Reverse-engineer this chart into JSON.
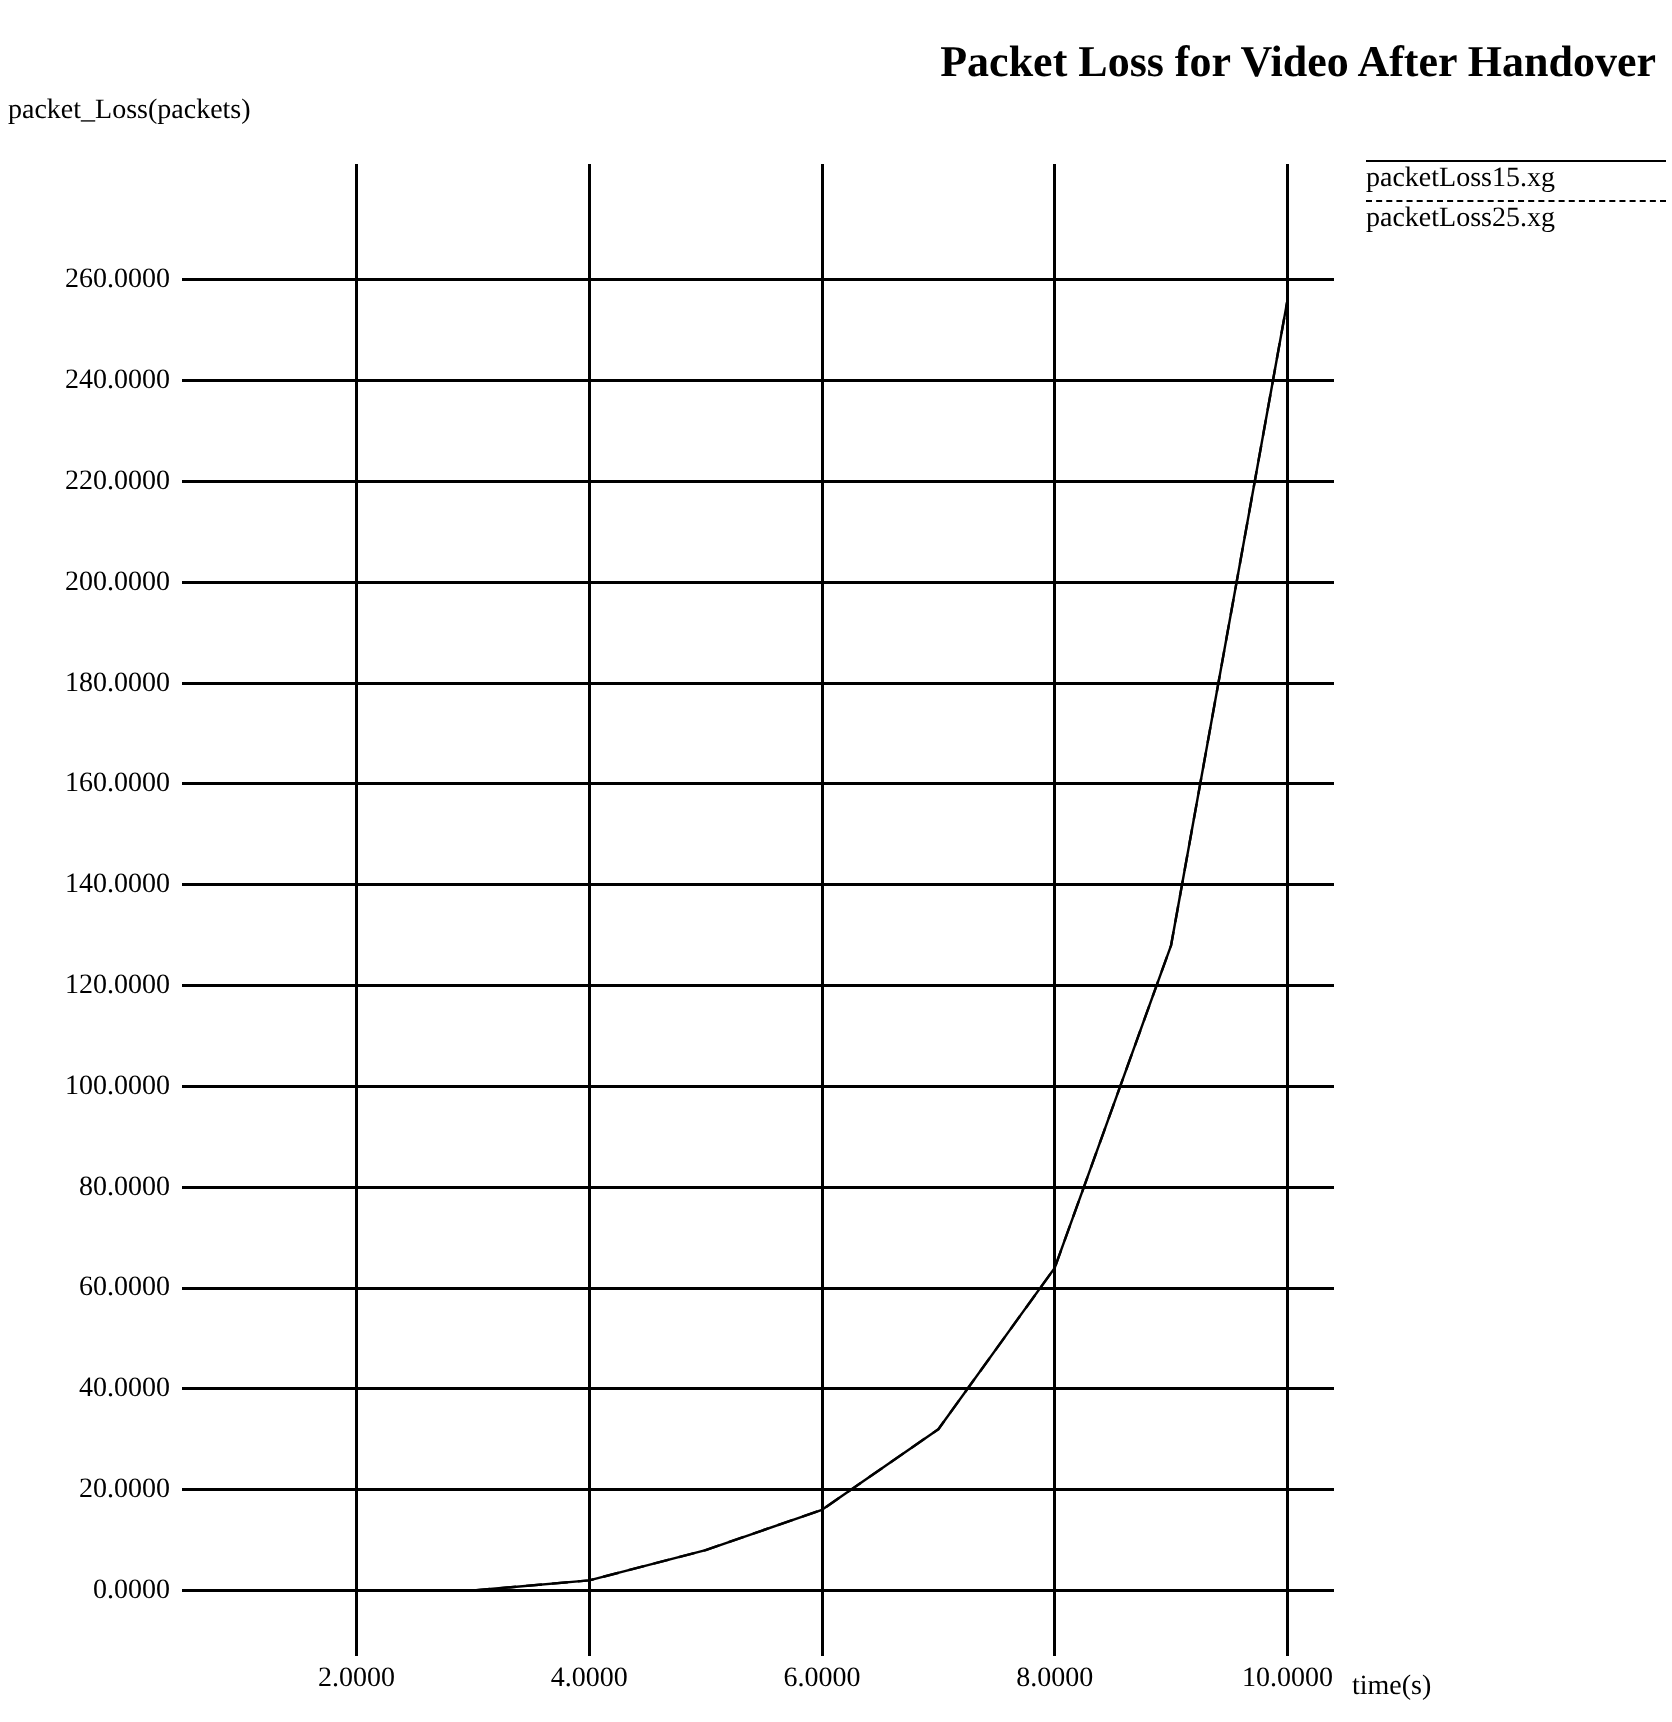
{
  "chart_data": {
    "type": "line",
    "title": "Packet Loss for Video After Handover",
    "xlabel": "time(s)",
    "ylabel": "packet_Loss(packets)",
    "x": [
      1,
      2,
      3,
      4,
      5,
      6,
      7,
      8,
      9,
      10
    ],
    "series": [
      {
        "name": "packetLoss15.xg",
        "color": "#000000",
        "line_style": "solid",
        "values": [
          0,
          0,
          0,
          2,
          8,
          16,
          32,
          64,
          128,
          256
        ]
      },
      {
        "name": "packetLoss25.xg",
        "color": "#000000",
        "line_style": "dashed",
        "values": [
          0,
          0,
          0,
          2,
          8,
          16,
          32,
          64,
          128,
          256
        ]
      }
    ],
    "xlim": [
      0.5,
      10.4
    ],
    "ylim": [
      -13,
      283
    ],
    "xticks": [
      {
        "value": 2,
        "label": "2.0000"
      },
      {
        "value": 4,
        "label": "4.0000"
      },
      {
        "value": 6,
        "label": "6.0000"
      },
      {
        "value": 8,
        "label": "8.0000"
      },
      {
        "value": 10,
        "label": "10.0000"
      }
    ],
    "yticks": [
      {
        "value": 0,
        "label": "0.0000"
      },
      {
        "value": 20,
        "label": "20.0000"
      },
      {
        "value": 40,
        "label": "40.0000"
      },
      {
        "value": 60,
        "label": "60.0000"
      },
      {
        "value": 80,
        "label": "80.0000"
      },
      {
        "value": 100,
        "label": "100.0000"
      },
      {
        "value": 120,
        "label": "120.0000"
      },
      {
        "value": 140,
        "label": "140.0000"
      },
      {
        "value": 160,
        "label": "160.0000"
      },
      {
        "value": 180,
        "label": "180.0000"
      },
      {
        "value": 200,
        "label": "200.0000"
      },
      {
        "value": 220,
        "label": "220.0000"
      },
      {
        "value": 240,
        "label": "240.0000"
      },
      {
        "value": 260,
        "label": "260.0000"
      }
    ],
    "grid": true,
    "legend": "top right",
    "marker": "none"
  }
}
